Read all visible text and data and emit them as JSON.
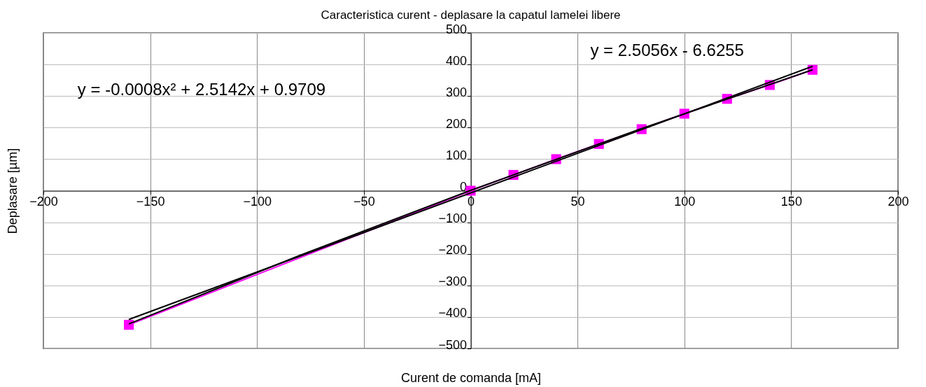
{
  "chart_data": {
    "type": "scatter",
    "title": "Caracteristica curent - deplasare la capatul lamelei libere",
    "xlabel": "Curent de comanda [mA]",
    "ylabel": "Deplasare [µm]",
    "x": [
      -160,
      0,
      20,
      40,
      60,
      80,
      100,
      120,
      140,
      160
    ],
    "series": [
      {
        "type": "line",
        "color": "#ff00ff",
        "marker": "square",
        "values": [
          -425,
          0,
          50,
          100,
          148,
          195,
          244,
          291,
          335,
          383
        ]
      },
      {
        "type": "line",
        "color": "#000000",
        "marker": "none",
        "x": [
          -160,
          160
        ],
        "values": [
          -408,
          394
        ]
      },
      {
        "type": "line",
        "color": "#000000",
        "marker": "none",
        "x": [
          -160,
          -80,
          0,
          80,
          160
        ],
        "values": [
          -422,
          -205,
          1,
          197,
          383
        ]
      }
    ],
    "annotations": [
      "y = 2.5056x - 6.6255",
      "y = -0.0008x² + 2.5142x + 0.9709"
    ],
    "xlim": [
      -200,
      200
    ],
    "xticks": [
      -200,
      -150,
      -100,
      -50,
      0,
      50,
      100,
      150,
      200
    ],
    "ylim": [
      -500,
      500
    ],
    "yticks": [
      -500,
      -400,
      -300,
      -200,
      -100,
      0,
      100,
      200,
      300,
      400,
      500
    ],
    "grid": true
  }
}
